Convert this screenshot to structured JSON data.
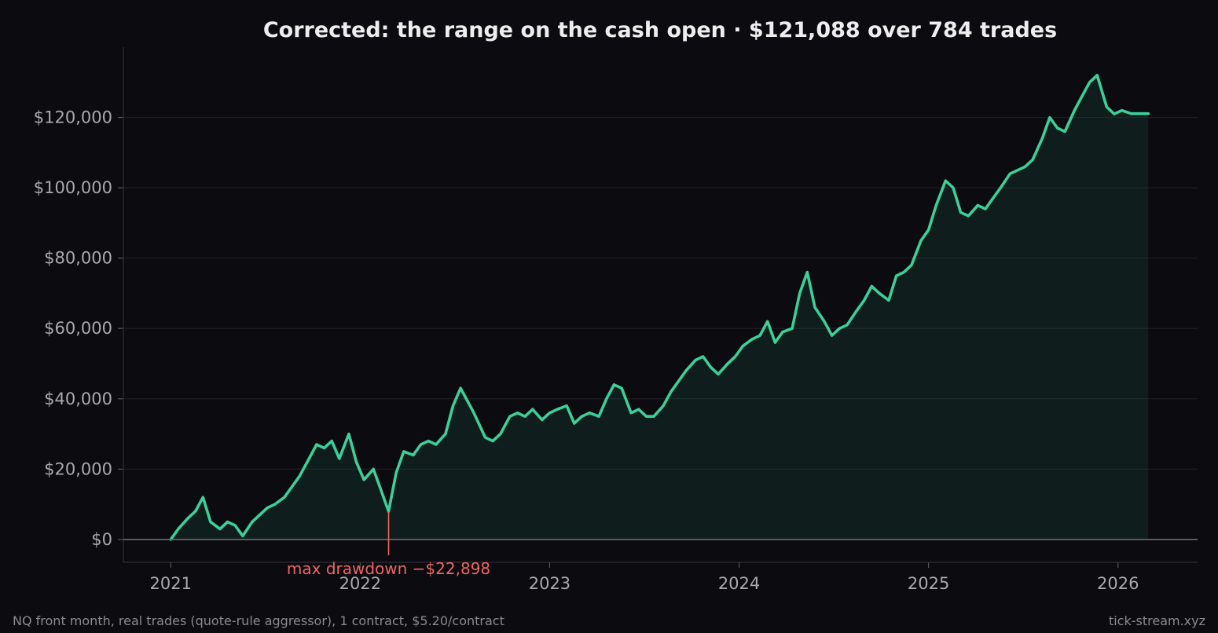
{
  "chart_data": {
    "type": "line",
    "title": "Corrected: the range on the cash open  ·  $121,088 over 784 trades",
    "xlabel": "",
    "ylabel": "",
    "x_tick_labels": [
      "2021",
      "2022",
      "2023",
      "2024",
      "2025",
      "2026"
    ],
    "y_tick_labels": [
      "$0",
      "$20,000",
      "$40,000",
      "$60,000",
      "$80,000",
      "$100,000",
      "$120,000"
    ],
    "y_ticks": [
      0,
      20000,
      40000,
      60000,
      80000,
      100000,
      120000
    ],
    "xlim": [
      2020.75,
      2026.42
    ],
    "ylim": [
      -6500,
      140000
    ],
    "grid": "horizontal",
    "series": [
      {
        "color": "#3ccf97",
        "x": [
          2021.0,
          2021.04,
          2021.09,
          2021.13,
          2021.17,
          2021.21,
          2021.26,
          2021.3,
          2021.34,
          2021.38,
          2021.43,
          2021.47,
          2021.51,
          2021.55,
          2021.6,
          2021.64,
          2021.68,
          2021.72,
          2021.77,
          2021.81,
          2021.85,
          2021.89,
          2021.94,
          2021.98,
          2022.02,
          2022.07,
          2022.11,
          2022.15,
          2022.19,
          2022.23,
          2022.28,
          2022.32,
          2022.36,
          2022.4,
          2022.45,
          2022.49,
          2022.53,
          2022.57,
          2022.6,
          2022.66,
          2022.7,
          2022.74,
          2022.79,
          2022.83,
          2022.87,
          2022.91,
          2022.96,
          2023.0,
          2023.04,
          2023.09,
          2023.13,
          2023.17,
          2023.21,
          2023.26,
          2023.3,
          2023.34,
          2023.38,
          2023.43,
          2023.47,
          2023.51,
          2023.55,
          2023.6,
          2023.64,
          2023.68,
          2023.72,
          2023.77,
          2023.81,
          2023.85,
          2023.89,
          2023.94,
          2023.98,
          2024.02,
          2024.07,
          2024.11,
          2024.15,
          2024.19,
          2024.23,
          2024.28,
          2024.32,
          2024.36,
          2024.4,
          2024.45,
          2024.49,
          2024.53,
          2024.57,
          2024.62,
          2024.66,
          2024.7,
          2024.74,
          2024.79,
          2024.83,
          2024.87,
          2024.91,
          2024.96,
          2025.0,
          2025.04,
          2025.09,
          2025.13,
          2025.17,
          2025.21,
          2025.26,
          2025.3,
          2025.34,
          2025.38,
          2025.43,
          2025.47,
          2025.51,
          2025.55,
          2025.6,
          2025.64,
          2025.68,
          2025.72,
          2025.77,
          2025.81,
          2025.85,
          2025.89,
          2025.94,
          2025.98,
          2026.02,
          2026.07,
          2026.1,
          2026.13,
          2026.16
        ],
        "y": [
          0,
          3000,
          6000,
          8000,
          12000,
          5000,
          3000,
          5000,
          4000,
          1000,
          5000,
          7000,
          9000,
          10000,
          12000,
          15000,
          18000,
          22000,
          27000,
          26000,
          28000,
          23000,
          30000,
          22000,
          17000,
          20000,
          14000,
          8000,
          19000,
          25000,
          24000,
          27000,
          28000,
          27000,
          30000,
          38000,
          43000,
          39000,
          36000,
          29000,
          28000,
          30000,
          35000,
          36000,
          35000,
          37000,
          34000,
          36000,
          37000,
          38000,
          33000,
          35000,
          36000,
          35000,
          40000,
          44000,
          43000,
          36000,
          37000,
          35000,
          35000,
          38000,
          42000,
          45000,
          48000,
          51000,
          52000,
          49000,
          47000,
          50000,
          52000,
          55000,
          57000,
          58000,
          62000,
          56000,
          59000,
          60000,
          70000,
          76000,
          66000,
          62000,
          58000,
          60000,
          61000,
          65000,
          68000,
          72000,
          70000,
          68000,
          75000,
          76000,
          78000,
          85000,
          88000,
          95000,
          102000,
          100000,
          93000,
          92000,
          95000,
          94000,
          97000,
          100000,
          104000,
          105000,
          106000,
          108000,
          114000,
          120000,
          117000,
          116000,
          122000,
          126000,
          130000,
          132000,
          123000,
          121000,
          122000,
          121088,
          121088,
          121088,
          121088
        ]
      }
    ],
    "annotation": {
      "text": "max drawdown  −$22,898",
      "x": 2022.15,
      "y": 8000,
      "color": "#f06464"
    }
  },
  "footer": {
    "source_note": "NQ front month, real trades (quote-rule aggressor), 1 contract, $5.20/contract",
    "site": "tick-stream.xyz"
  }
}
